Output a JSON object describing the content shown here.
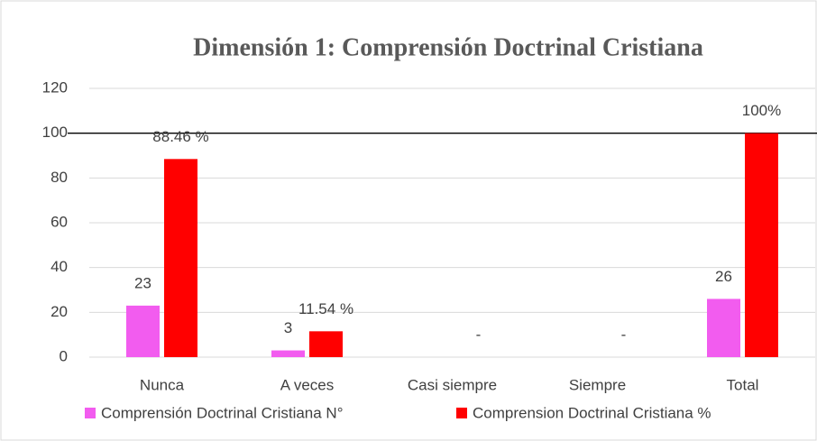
{
  "chart_data": {
    "type": "bar",
    "title": "Dimensión 1: Comprensión Doctrinal Cristiana",
    "categories": [
      "Nunca",
      "A veces",
      "Casi siempre",
      "Siempre",
      "Total"
    ],
    "series": [
      {
        "name": "Comprensión Doctrinal Cristiana N°",
        "color": "#f25cef",
        "values": [
          23,
          3,
          null,
          null,
          26
        ]
      },
      {
        "name": "Comprension Doctrinal Cristiana %",
        "color": "#ff0000",
        "values": [
          88.46,
          11.54,
          0,
          0,
          100
        ],
        "value_labels": [
          "88.46 %",
          "11.54 %",
          "-",
          "-",
          "100%"
        ]
      }
    ],
    "ylim": [
      0,
      120
    ],
    "yticks": [
      0,
      20,
      40,
      60,
      80,
      100,
      120
    ],
    "grid": true,
    "reference_line": 100,
    "legend": "bottom"
  }
}
